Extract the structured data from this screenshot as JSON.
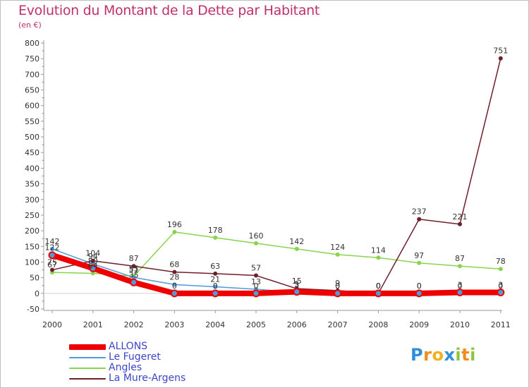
{
  "header": {
    "title": "Evolution du Montant de la Dette par Habitant",
    "subtitle": "(en €)"
  },
  "chart_data": {
    "type": "line",
    "title": "Evolution du Montant de la Dette par Habitant",
    "ylabel": "(en €)",
    "xlabel": "",
    "x": [
      "2000",
      "2001",
      "2002",
      "2003",
      "2004",
      "2005",
      "2006",
      "2007",
      "2008",
      "2009",
      "2010",
      "2011"
    ],
    "ylim": [
      -50,
      800
    ],
    "yticks": [
      -50,
      0,
      50,
      100,
      150,
      200,
      250,
      300,
      350,
      400,
      450,
      500,
      550,
      600,
      650,
      700,
      750,
      800
    ],
    "grid": false,
    "legend_position": "bottom-left",
    "series": [
      {
        "name": "ALLONS",
        "color": "#ee0000",
        "values": [
          122,
          80,
          35,
          0,
          0,
          0,
          5,
          0,
          0,
          0,
          3,
          3
        ]
      },
      {
        "name": "Le Fugeret",
        "color": "#4f9ad8",
        "values": [
          142,
          94,
          51,
          28,
          21,
          13,
          3,
          0,
          0,
          0,
          0,
          0
        ]
      },
      {
        "name": "Angles",
        "color": "#88d44c",
        "values": [
          67,
          64,
          55,
          196,
          178,
          160,
          142,
          124,
          114,
          97,
          87,
          78
        ]
      },
      {
        "name": "La Mure-Argens",
        "color": "#6e1f2a",
        "values": [
          75,
          104,
          87,
          68,
          63,
          57,
          15,
          9,
          0,
          237,
          221,
          751
        ]
      }
    ]
  },
  "legend": {
    "items": [
      {
        "label": "ALLONS",
        "color": "#ee0000"
      },
      {
        "label": "Le Fugeret",
        "color": "#4f9ad8"
      },
      {
        "label": "Angles",
        "color": "#88d44c"
      },
      {
        "label": "La Mure-Argens",
        "color": "#6e1f2a"
      }
    ]
  },
  "logo": {
    "letters": [
      "P",
      "r",
      "o",
      "x",
      "i",
      "t",
      "i"
    ],
    "colors": [
      "#2f8fd8",
      "#f28c1e",
      "#f2b21e",
      "#2f8fd8",
      "#8cc63f",
      "#f28c1e",
      "#8cc63f"
    ]
  }
}
